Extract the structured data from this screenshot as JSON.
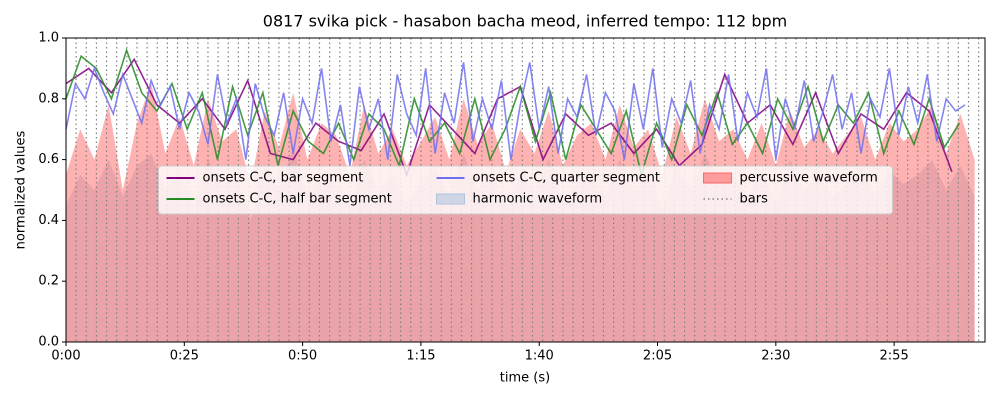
{
  "chart_data": {
    "type": "line",
    "title": "0817 svika pick - hasabon bacha meod, inferred tempo: 112 bpm",
    "xlabel": "time (s)",
    "ylabel": "normalized values",
    "xlim": [
      0,
      194.2
    ],
    "ylim": [
      0,
      1
    ],
    "xticks": [
      {
        "value": 0,
        "label": "0:00"
      },
      {
        "value": 25,
        "label": "0:25"
      },
      {
        "value": 50,
        "label": "0:50"
      },
      {
        "value": 75,
        "label": "1:15"
      },
      {
        "value": 100,
        "label": "1:40"
      },
      {
        "value": 125,
        "label": "2:05"
      },
      {
        "value": 150,
        "label": "2:30"
      },
      {
        "value": 175,
        "label": "2:55"
      }
    ],
    "yticks": [
      {
        "value": 0,
        "label": "0.0"
      },
      {
        "value": 0.2,
        "label": "0.2"
      },
      {
        "value": 0.4,
        "label": "0.4"
      },
      {
        "value": 0.6,
        "label": "0.6"
      },
      {
        "value": 0.8,
        "label": "0.8"
      },
      {
        "value": 1,
        "label": "1.0"
      }
    ],
    "legend": "center",
    "series": [
      {
        "name": "onsets C-C, bar segment",
        "kind": "line",
        "color": "#800080",
        "x": [
          0,
          4.8,
          9.6,
          14.4,
          19.2,
          24,
          28.8,
          33.6,
          38.4,
          43.2,
          48,
          52.8,
          57.6,
          62.4,
          67.2,
          72,
          76.8,
          81.6,
          86.4,
          91.2,
          96,
          100.8,
          105.6,
          110.4,
          115.2,
          120,
          124.8,
          129.6,
          134.4,
          139.2,
          144,
          148.8,
          153.6,
          158.4,
          163.2,
          168,
          172.8,
          177.6,
          182.4,
          187.2
        ],
        "values": [
          0.85,
          0.9,
          0.82,
          0.93,
          0.78,
          0.72,
          0.8,
          0.7,
          0.86,
          0.62,
          0.6,
          0.72,
          0.66,
          0.63,
          0.75,
          0.55,
          0.78,
          0.7,
          0.62,
          0.8,
          0.84,
          0.6,
          0.75,
          0.68,
          0.72,
          0.62,
          0.7,
          0.58,
          0.65,
          0.88,
          0.72,
          0.78,
          0.65,
          0.82,
          0.62,
          0.75,
          0.7,
          0.82,
          0.76,
          0.56
        ]
      },
      {
        "name": "onsets C-C, half bar segment",
        "kind": "line",
        "color": "#228b22",
        "x": [
          0,
          3.2,
          6.4,
          9.6,
          12.8,
          16,
          19.2,
          22.4,
          25.6,
          28.8,
          32,
          35.2,
          38.4,
          41.6,
          44.8,
          48,
          51.2,
          54.4,
          57.6,
          60.8,
          64,
          67.2,
          70.4,
          73.6,
          76.8,
          80,
          83.2,
          86.4,
          89.6,
          92.8,
          96,
          99.2,
          102.4,
          105.6,
          108.8,
          112,
          115.2,
          118.4,
          121.6,
          124.8,
          128,
          131.2,
          134.4,
          137.6,
          140.8,
          144,
          147.2,
          150.4,
          153.6,
          156.8,
          160,
          163.2,
          166.4,
          169.6,
          172.8,
          176,
          179.2,
          182.4,
          185.6,
          188.8
        ],
        "values": [
          0.8,
          0.94,
          0.9,
          0.8,
          0.96,
          0.82,
          0.76,
          0.85,
          0.7,
          0.82,
          0.6,
          0.84,
          0.68,
          0.82,
          0.58,
          0.76,
          0.66,
          0.62,
          0.72,
          0.6,
          0.75,
          0.7,
          0.58,
          0.8,
          0.66,
          0.72,
          0.62,
          0.8,
          0.6,
          0.7,
          0.84,
          0.66,
          0.82,
          0.6,
          0.78,
          0.7,
          0.62,
          0.76,
          0.55,
          0.72,
          0.6,
          0.78,
          0.68,
          0.82,
          0.65,
          0.72,
          0.62,
          0.8,
          0.7,
          0.84,
          0.66,
          0.78,
          0.72,
          0.82,
          0.62,
          0.76,
          0.65,
          0.8,
          0.64,
          0.72
        ]
      },
      {
        "name": "onsets C-C, quarter segment",
        "kind": "line",
        "color": "#7070f0",
        "x": [
          0,
          2,
          4,
          6,
          8,
          10,
          12,
          14,
          16,
          18,
          20,
          22,
          24,
          26,
          28,
          30,
          32,
          34,
          36,
          38,
          40,
          42,
          44,
          46,
          48,
          50,
          52,
          54,
          56,
          58,
          60,
          62,
          64,
          66,
          68,
          70,
          72,
          74,
          76,
          78,
          80,
          82,
          84,
          86,
          88,
          90,
          92,
          94,
          96,
          98,
          100,
          102,
          104,
          106,
          108,
          110,
          112,
          114,
          116,
          118,
          120,
          122,
          124,
          126,
          128,
          130,
          132,
          134,
          136,
          138,
          140,
          142,
          144,
          146,
          148,
          150,
          152,
          154,
          156,
          158,
          160,
          162,
          164,
          166,
          168,
          170,
          172,
          174,
          176,
          178,
          180,
          182,
          184,
          186,
          188,
          190
        ],
        "values": [
          0.7,
          0.85,
          0.8,
          0.9,
          0.82,
          0.75,
          0.88,
          0.8,
          0.72,
          0.86,
          0.78,
          0.84,
          0.7,
          0.82,
          0.76,
          0.65,
          0.88,
          0.72,
          0.8,
          0.6,
          0.85,
          0.74,
          0.68,
          0.82,
          0.62,
          0.8,
          0.72,
          0.9,
          0.66,
          0.78,
          0.58,
          0.84,
          0.7,
          0.8,
          0.6,
          0.88,
          0.75,
          0.68,
          0.9,
          0.62,
          0.82,
          0.72,
          0.92,
          0.66,
          0.8,
          0.7,
          0.86,
          0.6,
          0.78,
          0.92,
          0.7,
          0.84,
          0.62,
          0.8,
          0.74,
          0.88,
          0.68,
          0.82,
          0.76,
          0.6,
          0.85,
          0.7,
          0.9,
          0.64,
          0.8,
          0.72,
          0.86,
          0.62,
          0.78,
          0.7,
          0.88,
          0.66,
          0.82,
          0.74,
          0.9,
          0.6,
          0.8,
          0.7,
          0.86,
          0.66,
          0.76,
          0.88,
          0.7,
          0.82,
          0.62,
          0.8,
          0.74,
          0.9,
          0.68,
          0.84,
          0.72,
          0.88,
          0.66,
          0.8,
          0.76,
          0.78
        ]
      },
      {
        "name": "harmonic waveform",
        "kind": "area",
        "color": "#b0c4de",
        "x": [
          0,
          3,
          6,
          9,
          12,
          15,
          18,
          21,
          24,
          27,
          30,
          33,
          36,
          39,
          42,
          45,
          48,
          51,
          54,
          57,
          60,
          63,
          66,
          69,
          72,
          75,
          78,
          81,
          84,
          87,
          90,
          93,
          96,
          99,
          102,
          105,
          108,
          111,
          114,
          117,
          120,
          123,
          126,
          129,
          132,
          135,
          138,
          141,
          144,
          147,
          150,
          153,
          156,
          159,
          162,
          165,
          168,
          171,
          174,
          177,
          180,
          183,
          186,
          189,
          192
        ],
        "values": [
          0.45,
          0.55,
          0.5,
          0.6,
          0.48,
          0.58,
          0.62,
          0.5,
          0.56,
          0.44,
          0.6,
          0.52,
          0.55,
          0.4,
          0.58,
          0.5,
          0.64,
          0.48,
          0.56,
          0.52,
          0.45,
          0.6,
          0.5,
          0.55,
          0.46,
          0.52,
          0.58,
          0.48,
          0.62,
          0.5,
          0.56,
          0.44,
          0.55,
          0.5,
          0.6,
          0.46,
          0.52,
          0.56,
          0.48,
          0.6,
          0.5,
          0.55,
          0.44,
          0.58,
          0.5,
          0.62,
          0.52,
          0.55,
          0.48,
          0.56,
          0.46,
          0.6,
          0.5,
          0.55,
          0.48,
          0.52,
          0.58,
          0.48,
          0.56,
          0.52,
          0.55,
          0.6,
          0.5,
          0.58,
          0.48
        ]
      },
      {
        "name": "percussive waveform",
        "kind": "area",
        "color": "#ff6666",
        "x": [
          0,
          3,
          6,
          9,
          12,
          15,
          18,
          21,
          24,
          27,
          30,
          33,
          36,
          39,
          42,
          45,
          48,
          51,
          54,
          57,
          60,
          63,
          66,
          69,
          72,
          75,
          78,
          81,
          84,
          87,
          90,
          93,
          96,
          99,
          102,
          105,
          108,
          111,
          114,
          117,
          120,
          123,
          126,
          129,
          132,
          135,
          138,
          141,
          144,
          147,
          150,
          153,
          156,
          159,
          162,
          165,
          168,
          171,
          174,
          177,
          180,
          183,
          186,
          189,
          192
        ],
        "values": [
          0.55,
          0.7,
          0.6,
          0.78,
          0.5,
          0.72,
          0.85,
          0.62,
          0.74,
          0.58,
          0.8,
          0.66,
          0.7,
          0.52,
          0.76,
          0.64,
          0.82,
          0.6,
          0.72,
          0.68,
          0.55,
          0.78,
          0.62,
          0.7,
          0.58,
          0.66,
          0.74,
          0.6,
          0.8,
          0.65,
          0.72,
          0.56,
          0.7,
          0.62,
          0.76,
          0.58,
          0.68,
          0.72,
          0.6,
          0.78,
          0.64,
          0.7,
          0.55,
          0.74,
          0.62,
          0.8,
          0.66,
          0.7,
          0.6,
          0.72,
          0.58,
          0.76,
          0.64,
          0.7,
          0.62,
          0.68,
          0.74,
          0.6,
          0.72,
          0.66,
          0.7,
          0.78,
          0.62,
          0.75,
          0.6
        ]
      },
      {
        "name": "bars",
        "kind": "vline",
        "color": "#808080",
        "x": [
          0,
          2.14,
          4.29,
          6.43,
          8.57,
          10.71,
          12.86,
          15,
          17.14,
          19.29,
          21.43,
          23.57,
          25.71,
          27.86,
          30,
          32.14,
          34.29,
          36.43,
          38.57,
          40.71,
          42.86,
          45,
          47.14,
          49.29,
          51.43,
          53.57,
          55.71,
          57.86,
          60,
          62.14,
          64.29,
          66.43,
          68.57,
          70.71,
          72.86,
          75,
          77.14,
          79.29,
          81.43,
          83.57,
          85.71,
          87.86,
          90,
          92.14,
          94.29,
          96.43,
          98.57,
          100.71,
          102.86,
          105,
          107.14,
          109.29,
          111.43,
          113.57,
          115.71,
          117.86,
          120,
          122.14,
          124.29,
          126.43,
          128.57,
          130.71,
          132.86,
          135,
          137.14,
          139.29,
          141.43,
          143.57,
          145.71,
          147.86,
          150,
          152.14,
          154.29,
          156.43,
          158.57,
          160.71,
          162.86,
          165,
          167.14,
          169.29,
          171.43,
          173.57,
          175.71,
          177.86,
          180,
          182.14,
          184.29,
          186.43,
          188.57,
          190.71,
          192.86
        ]
      }
    ]
  }
}
